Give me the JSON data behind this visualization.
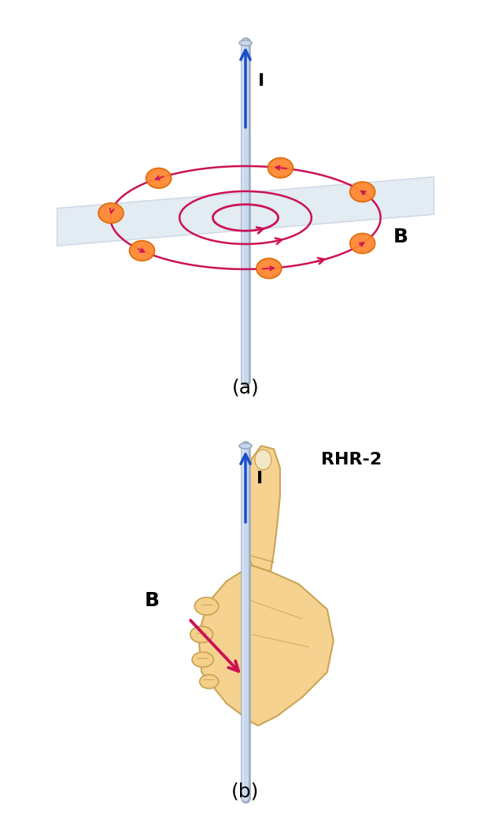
{
  "background_color": "#ffffff",
  "panel_a_label": "(a)",
  "panel_b_label": "(b)",
  "current_label": "I",
  "B_label": "B",
  "rhr2_label": "RHR-2",
  "wire_color": "#c8d8ee",
  "wire_border_color": "#9aabbd",
  "wire_highlight": "#e8f0f8",
  "arrow_color": "#1a4ecc",
  "spiral_color": "#cc1155",
  "ball_color": "#ff8833",
  "ball_edge_color": "#dd6600",
  "hand_fill_color": "#f5d08a",
  "hand_edge_color": "#c8a050",
  "hand_line_color": "#b89040",
  "plane_color": "#c8d8e8",
  "plane_alpha": 0.5,
  "label_fontsize": 16,
  "sublabel_fontsize": 18,
  "B_fontsize": 18,
  "panel_a_ylim": [
    -2.8,
    3.5
  ],
  "panel_b_ylim": [
    -2.8,
    3.5
  ],
  "xlim": [
    -3.2,
    3.2
  ],
  "wire_lw_outer": 9,
  "wire_lw_inner": 6
}
